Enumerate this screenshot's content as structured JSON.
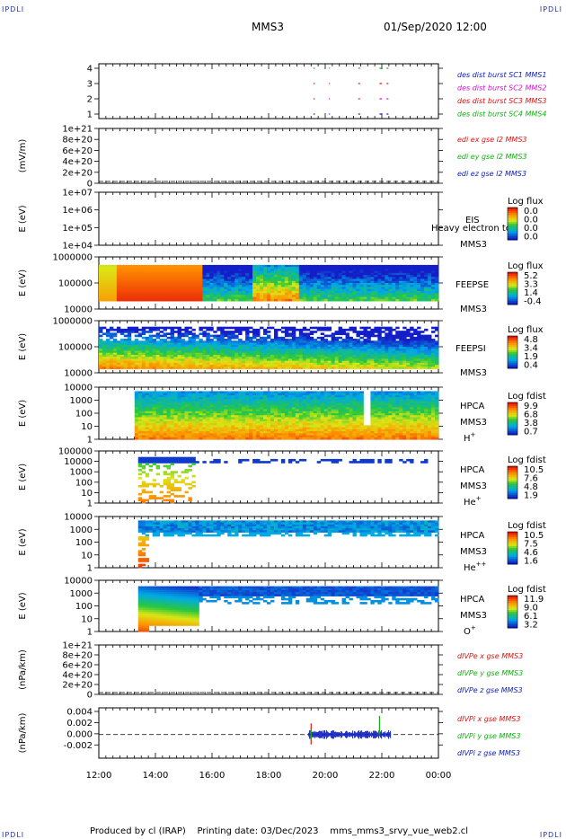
{
  "corner_labels": {
    "top_left": "IPDLI",
    "top_right": "IPDLI",
    "bottom_left": "IPDLI",
    "bottom_right": "IPDLI"
  },
  "header": {
    "spacecraft": "MMS3",
    "datetime": "01/Sep/2020 12:00"
  },
  "footer": {
    "produced_by": "Produced by cl (IRAP)",
    "printing_date": "Printing date: 03/Dec/2023",
    "file": "mms_mms3_srvy_vue_web2.cl"
  },
  "colors": {
    "red": "#e01010",
    "green": "#10b010",
    "blue": "#1020c0",
    "magenta": "#d010d0",
    "burst_blue": "#1020c0"
  },
  "chart_data": [
    {
      "type": "scatter",
      "panel": "burst",
      "y_ticks": [
        "4",
        "3",
        "2",
        "1"
      ],
      "ylim": [
        0.5,
        4.5
      ],
      "xlim": [
        "12:00",
        "00:00"
      ],
      "legend": [
        "des dist burst SC1 MMS1",
        "des dist burst SC2 MMS2",
        "des dist burst SC3 MMS3",
        "des dist burst SC4 MMS4"
      ],
      "series": [
        {
          "name": "des dist burst SC1 MMS1",
          "y": 1,
          "color": "#1020c0",
          "segments": [
            [
              "19:35",
              "19:38"
            ],
            [
              "20:08",
              "20:10"
            ],
            [
              "21:10",
              "21:14"
            ],
            [
              "21:55",
              "22:00"
            ],
            [
              "22:10",
              "22:14"
            ]
          ]
        },
        {
          "name": "des dist burst SC2 MMS2",
          "y": 2,
          "color": "#d010d0",
          "segments": [
            [
              "19:35",
              "19:38"
            ],
            [
              "20:08",
              "20:10"
            ],
            [
              "21:10",
              "21:14"
            ],
            [
              "21:55",
              "22:00"
            ],
            [
              "22:10",
              "22:14"
            ]
          ]
        },
        {
          "name": "des dist burst SC3 MMS3",
          "y": 3,
          "color": "#e01010",
          "segments": [
            [
              "19:35",
              "19:38"
            ],
            [
              "20:08",
              "20:10"
            ],
            [
              "21:10",
              "21:14"
            ],
            [
              "21:55",
              "22:00"
            ],
            [
              "22:10",
              "22:14"
            ]
          ]
        },
        {
          "name": "des dist burst SC4 MMS4",
          "y": 4,
          "color": "#10b010",
          "segments": [
            [
              "19:35",
              "19:38"
            ],
            [
              "20:08",
              "20:10"
            ],
            [
              "21:10",
              "21:14"
            ],
            [
              "21:55",
              "22:00"
            ],
            [
              "22:10",
              "22:14"
            ]
          ]
        }
      ]
    },
    {
      "type": "line",
      "panel": "edi",
      "ylabel": "(mV/m)",
      "y_ticks": [
        "1e+21",
        "8e+20",
        "6e+20",
        "4e+20",
        "2e+20",
        "0"
      ],
      "legend": [
        "edi ex gse l2 MMS3",
        "edi ey gse l2 MMS3",
        "edi ez gse l2 MMS3"
      ],
      "zero_line": true
    },
    {
      "type": "heatmap",
      "panel": "eis",
      "ylabel": "E (eV)",
      "y_ticks": [
        "1e+07",
        "1e+06",
        "1e+05",
        "1e+04"
      ],
      "label_lines": [
        "EIS",
        "Heavy electron tc",
        "MMS3"
      ],
      "colorbar": {
        "title": "Log flux",
        "ticks": [
          "0.0",
          "0.0",
          "0.0",
          "0.0"
        ]
      }
    },
    {
      "type": "heatmap",
      "panel": "feeps_e",
      "ylabel": "E (eV)",
      "y_ticks": [
        "1000000",
        "100000",
        "10000"
      ],
      "label_lines": [
        "FEEPSE",
        "MMS3"
      ],
      "colorbar": {
        "title": "Log flux",
        "ticks": [
          "5.2",
          "3.3",
          "1.4",
          "-0.4"
        ]
      }
    },
    {
      "type": "heatmap",
      "panel": "feeps_i",
      "ylabel": "E (eV)",
      "y_ticks": [
        "1000000",
        "100000",
        "10000"
      ],
      "label_lines": [
        "FEEPSI",
        "MMS3"
      ],
      "colorbar": {
        "title": "Log flux",
        "ticks": [
          "4.8",
          "3.4",
          "1.9",
          "0.4"
        ]
      }
    },
    {
      "type": "heatmap",
      "panel": "hpca_h",
      "ylabel": "E (eV)",
      "y_ticks": [
        "10000",
        "1000",
        "100",
        "10",
        "1"
      ],
      "label_lines": [
        "HPCA",
        "MMS3"
      ],
      "species": "H",
      "charge": "+",
      "colorbar": {
        "title": "Log fdist",
        "ticks": [
          "9.9",
          "6.8",
          "3.8",
          "0.7"
        ]
      }
    },
    {
      "type": "heatmap",
      "panel": "hpca_he1",
      "ylabel": "E (eV)",
      "y_ticks": [
        "100000",
        "10000",
        "1000",
        "100",
        "10",
        "1"
      ],
      "label_lines": [
        "HPCA",
        "MMS3"
      ],
      "species": "He",
      "charge": "+",
      "colorbar": {
        "title": "Log fdist",
        "ticks": [
          "10.5",
          "7.6",
          "4.8",
          "1.9"
        ]
      }
    },
    {
      "type": "heatmap",
      "panel": "hpca_he2",
      "ylabel": "E (eV)",
      "y_ticks": [
        "10000",
        "1000",
        "100",
        "10",
        "1"
      ],
      "label_lines": [
        "HPCA",
        "MMS3"
      ],
      "species": "He",
      "charge": "++",
      "colorbar": {
        "title": "Log fdist",
        "ticks": [
          "10.5",
          "7.5",
          "4.6",
          "1.6"
        ]
      }
    },
    {
      "type": "heatmap",
      "panel": "hpca_o",
      "ylabel": "E (eV)",
      "y_ticks": [
        "10000",
        "1000",
        "100",
        "10",
        "1"
      ],
      "label_lines": [
        "HPCA",
        "MMS3"
      ],
      "species": "O",
      "charge": "+",
      "colorbar": {
        "title": "Log fdist",
        "ticks": [
          "11.9",
          "9.0",
          "6.1",
          "3.2"
        ]
      }
    },
    {
      "type": "line",
      "panel": "divpe",
      "ylabel": "(nPa/km)",
      "y_ticks": [
        "1e+21",
        "8e+20",
        "6e+20",
        "4e+20",
        "2e+20",
        "0"
      ],
      "legend": [
        "dIVPe x gse MMS3",
        "dIVPe y gse MMS3",
        "dIVPe z gse MMS3"
      ],
      "zero_line": true
    },
    {
      "type": "line",
      "panel": "divpi",
      "ylabel": "(nPa/km)",
      "y_ticks": [
        "0.004",
        "0.002",
        "0.000",
        "-0.002"
      ],
      "ylim": [
        -0.0038,
        0.0043
      ],
      "legend": [
        "dIVPi x gse MMS3",
        "dIVPi y gse MMS3",
        "dIVPi z gse MMS3"
      ],
      "zero_line": true,
      "series": [
        {
          "name": "dIVPi x gse MMS3",
          "color": "#e01010",
          "spikes": [
            [
              "19:30",
              0.0018,
              -0.0016
            ]
          ]
        },
        {
          "name": "dIVPi y gse MMS3",
          "color": "#10b010",
          "spikes": [
            [
              "21:55",
              0.003,
              0.0
            ],
            [
              "19:30",
              0.0008,
              -0.0008
            ]
          ]
        },
        {
          "name": "dIVPi z gse MMS3",
          "color": "#1020c0",
          "band": [
            "19:25",
            "22:20",
            0.0005
          ]
        }
      ]
    }
  ],
  "x_axis": {
    "ticks": [
      "12:00",
      "14:00",
      "16:00",
      "18:00",
      "20:00",
      "22:00",
      "00:00"
    ]
  }
}
